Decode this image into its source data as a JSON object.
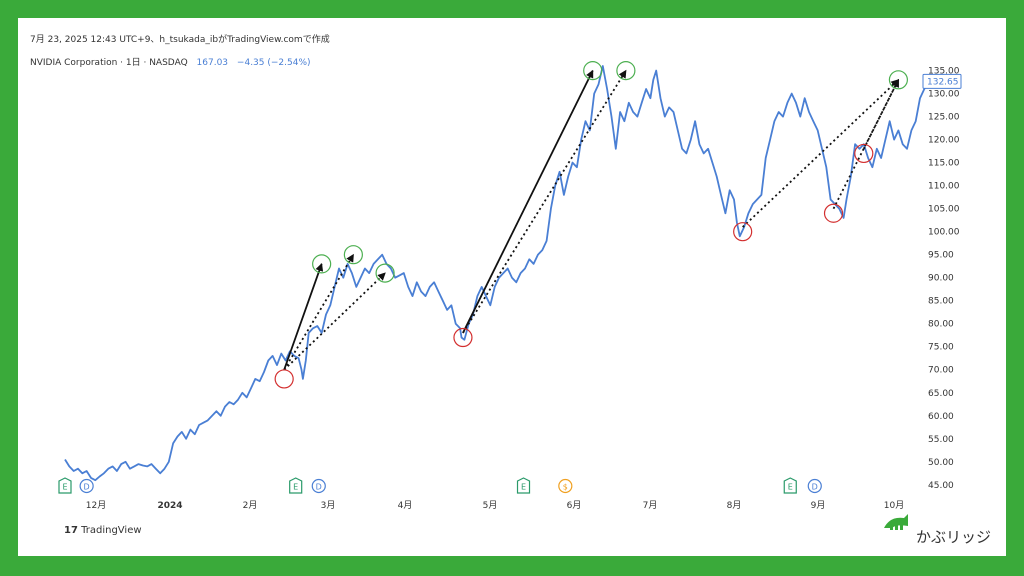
{
  "header": {
    "caption": "7月 23, 2025 12:43 UTC+9、h_tsukada_ibがTradingView.comで作成",
    "symbol": "NVIDIA Corporation · 1日 · NASDAQ",
    "price": "167.03",
    "change": "−4.35 (−2.54%)"
  },
  "footer": {
    "tv_logo": "TradingView",
    "brand": "かぶリッジ"
  },
  "colors": {
    "line": "#4a7fd4",
    "up_circle": "#4caf50",
    "down_circle": "#d32f2f",
    "arrow": "#111111",
    "frame": "#3aaa3a",
    "last_price_label": "#4a7fd4"
  },
  "chart_data": {
    "type": "line",
    "title": "NVIDIA Corporation · 1日 · NASDAQ",
    "xlabel": "",
    "ylabel": "",
    "ylim": [
      43,
      136
    ],
    "last_price_label": "132.65",
    "y_ticks": [
      "135.00",
      "130.00",
      "125.00",
      "120.00",
      "115.00",
      "110.00",
      "105.00",
      "100.00",
      "95.00",
      "90.00",
      "85.00",
      "80.00",
      "75.00",
      "70.00",
      "65.00",
      "60.00",
      "55.00",
      "50.00",
      "45.00"
    ],
    "x_ticks": [
      "12月",
      "2024",
      "2月",
      "3月",
      "4月",
      "5月",
      "6月",
      "7月",
      "8月",
      "9月",
      "10月"
    ],
    "series": [
      {
        "values": [
          [
            0,
            50.5
          ],
          [
            3,
            49
          ],
          [
            6,
            48
          ],
          [
            9,
            48.5
          ],
          [
            12,
            47.5
          ],
          [
            15,
            48
          ],
          [
            18,
            46.5
          ],
          [
            21,
            46
          ],
          [
            24,
            46.8
          ],
          [
            27,
            47.5
          ],
          [
            30,
            48.5
          ],
          [
            33,
            49
          ],
          [
            36,
            48
          ],
          [
            39,
            49.5
          ],
          [
            42,
            50
          ],
          [
            45,
            48.5
          ],
          [
            48,
            49
          ],
          [
            51,
            49.5
          ],
          [
            54,
            49.2
          ],
          [
            57,
            49
          ],
          [
            60,
            49.5
          ],
          [
            63,
            48.5
          ],
          [
            66,
            47.5
          ],
          [
            69,
            48.5
          ],
          [
            72,
            50
          ],
          [
            75,
            54
          ],
          [
            78,
            55.5
          ],
          [
            81,
            56.5
          ],
          [
            84,
            55
          ],
          [
            87,
            57
          ],
          [
            90,
            56
          ],
          [
            93,
            58
          ],
          [
            96,
            58.5
          ],
          [
            99,
            59
          ],
          [
            102,
            60
          ],
          [
            105,
            61
          ],
          [
            108,
            60
          ],
          [
            111,
            62
          ],
          [
            114,
            63
          ],
          [
            117,
            62.5
          ],
          [
            120,
            63.5
          ],
          [
            123,
            65
          ],
          [
            126,
            64
          ],
          [
            129,
            66
          ],
          [
            132,
            68
          ],
          [
            135,
            67.5
          ],
          [
            138,
            69.5
          ],
          [
            141,
            72
          ],
          [
            144,
            73
          ],
          [
            147,
            71
          ],
          [
            150,
            73.5
          ],
          [
            153,
            72
          ],
          [
            156,
            74
          ],
          [
            159,
            73
          ],
          [
            162,
            72.5
          ],
          [
            164,
            70
          ],
          [
            165,
            68
          ],
          [
            167,
            72
          ],
          [
            169,
            78
          ],
          [
            172,
            79
          ],
          [
            175,
            79.5
          ],
          [
            178,
            78
          ],
          [
            181,
            82
          ],
          [
            184,
            84
          ],
          [
            187,
            88
          ],
          [
            190,
            92
          ],
          [
            193,
            90
          ],
          [
            196,
            93
          ],
          [
            199,
            91
          ],
          [
            202,
            88
          ],
          [
            205,
            90
          ],
          [
            208,
            92
          ],
          [
            211,
            91
          ],
          [
            214,
            93
          ],
          [
            217,
            94
          ],
          [
            220,
            95
          ],
          [
            223,
            93
          ],
          [
            226,
            92
          ],
          [
            229,
            90
          ],
          [
            232,
            90.5
          ],
          [
            235,
            91
          ],
          [
            238,
            88
          ],
          [
            241,
            86
          ],
          [
            244,
            89
          ],
          [
            247,
            87
          ],
          [
            250,
            86
          ],
          [
            253,
            88
          ],
          [
            256,
            89
          ],
          [
            259,
            87
          ],
          [
            262,
            85
          ],
          [
            265,
            83
          ],
          [
            268,
            84
          ],
          [
            271,
            80
          ],
          [
            274,
            79
          ],
          [
            275,
            77
          ],
          [
            277,
            76.5
          ],
          [
            280,
            80
          ],
          [
            283,
            82
          ],
          [
            286,
            86
          ],
          [
            289,
            88
          ],
          [
            292,
            86
          ],
          [
            295,
            84
          ],
          [
            298,
            88
          ],
          [
            301,
            90
          ],
          [
            304,
            91
          ],
          [
            307,
            92
          ],
          [
            310,
            90
          ],
          [
            313,
            89
          ],
          [
            316,
            91
          ],
          [
            319,
            92
          ],
          [
            322,
            94
          ],
          [
            325,
            93
          ],
          [
            328,
            95
          ],
          [
            331,
            96
          ],
          [
            334,
            98
          ],
          [
            337,
            105
          ],
          [
            340,
            110
          ],
          [
            343,
            113
          ],
          [
            346,
            108
          ],
          [
            349,
            112
          ],
          [
            352,
            115
          ],
          [
            355,
            114
          ],
          [
            358,
            120
          ],
          [
            361,
            124
          ],
          [
            364,
            122
          ],
          [
            367,
            130
          ],
          [
            370,
            132
          ],
          [
            373,
            136
          ],
          [
            376,
            131
          ],
          [
            379,
            125
          ],
          [
            382,
            118
          ],
          [
            385,
            126
          ],
          [
            388,
            124
          ],
          [
            391,
            128
          ],
          [
            394,
            126
          ],
          [
            397,
            125
          ],
          [
            400,
            128
          ],
          [
            403,
            131
          ],
          [
            406,
            129
          ],
          [
            408,
            133
          ],
          [
            410,
            135
          ],
          [
            413,
            129
          ],
          [
            416,
            125
          ],
          [
            419,
            127
          ],
          [
            422,
            126
          ],
          [
            425,
            122
          ],
          [
            428,
            118
          ],
          [
            431,
            117
          ],
          [
            434,
            120
          ],
          [
            437,
            124
          ],
          [
            440,
            119
          ],
          [
            443,
            117
          ],
          [
            446,
            118
          ],
          [
            449,
            115
          ],
          [
            452,
            112
          ],
          [
            455,
            108
          ],
          [
            458,
            104
          ],
          [
            461,
            109
          ],
          [
            464,
            107
          ],
          [
            466,
            102
          ],
          [
            468,
            99
          ],
          [
            471,
            101
          ],
          [
            474,
            104
          ],
          [
            477,
            106
          ],
          [
            480,
            107
          ],
          [
            483,
            108
          ],
          [
            486,
            116
          ],
          [
            489,
            120
          ],
          [
            492,
            124
          ],
          [
            495,
            126
          ],
          [
            498,
            125
          ],
          [
            501,
            128
          ],
          [
            504,
            130
          ],
          [
            507,
            128
          ],
          [
            510,
            125
          ],
          [
            513,
            129
          ],
          [
            516,
            126
          ],
          [
            519,
            124
          ],
          [
            522,
            122
          ],
          [
            525,
            118
          ],
          [
            528,
            114
          ],
          [
            531,
            107
          ],
          [
            534,
            106
          ],
          [
            537,
            105
          ],
          [
            540,
            103
          ],
          [
            542,
            107
          ],
          [
            545,
            112
          ],
          [
            548,
            119
          ],
          [
            551,
            118
          ],
          [
            554,
            119
          ],
          [
            557,
            116
          ],
          [
            560,
            114
          ],
          [
            563,
            118
          ],
          [
            566,
            116
          ],
          [
            569,
            120
          ],
          [
            572,
            124
          ],
          [
            575,
            120
          ],
          [
            578,
            122
          ],
          [
            581,
            119
          ],
          [
            584,
            118
          ],
          [
            587,
            122
          ],
          [
            590,
            124
          ],
          [
            593,
            129
          ],
          [
            596,
            131
          ],
          [
            599,
            132.65
          ]
        ]
      }
    ],
    "annotations": {
      "peak_circles": [
        [
          178,
          93
        ],
        [
          200,
          95
        ],
        [
          222,
          91
        ],
        [
          366,
          135
        ],
        [
          389,
          135
        ],
        [
          578,
          133
        ]
      ],
      "trough_circles": [
        [
          152,
          68
        ],
        [
          276,
          77
        ],
        [
          470,
          100
        ],
        [
          533,
          104
        ],
        [
          554,
          117
        ]
      ],
      "arrows": [
        {
          "from": [
            152,
            70
          ],
          "to": [
            178,
            93
          ],
          "style": "solid"
        },
        {
          "from": [
            152,
            70
          ],
          "to": [
            200,
            95
          ],
          "style": "dotted"
        },
        {
          "from": [
            152,
            70
          ],
          "to": [
            222,
            91
          ],
          "style": "dotted"
        },
        {
          "from": [
            276,
            78
          ],
          "to": [
            366,
            135
          ],
          "style": "solid"
        },
        {
          "from": [
            276,
            78
          ],
          "to": [
            389,
            135
          ],
          "style": "dotted"
        },
        {
          "from": [
            470,
            101
          ],
          "to": [
            578,
            133
          ],
          "style": "dotted"
        },
        {
          "from": [
            533,
            105
          ],
          "to": [
            578,
            133
          ],
          "style": "dotted"
        },
        {
          "from": [
            554,
            118
          ],
          "to": [
            578,
            133
          ],
          "style": "dotted"
        }
      ]
    },
    "events": [
      {
        "label": "E",
        "x": 0
      },
      {
        "label": "D",
        "x": 15
      },
      {
        "label": "E",
        "x": 160
      },
      {
        "label": "D",
        "x": 176
      },
      {
        "label": "E",
        "x": 318
      },
      {
        "label": "$",
        "x": 347
      },
      {
        "label": "E",
        "x": 503
      },
      {
        "label": "D",
        "x": 520
      }
    ]
  }
}
